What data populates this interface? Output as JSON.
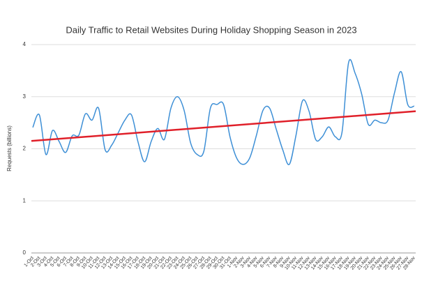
{
  "chart_data": {
    "type": "line",
    "title": "Daily Traffic to Retail Websites During Holiday Shopping Season in 2023",
    "y_label": "Requests (billions)",
    "categories": [
      "1-Oct",
      "2-Oct",
      "3-Oct",
      "4-Oct",
      "5-Oct",
      "6-Oct",
      "7-Oct",
      "8-Oct",
      "9-Oct",
      "10-Oct",
      "11-Oct",
      "12-Oct",
      "13-Oct",
      "14-Oct",
      "15-Oct",
      "16-Oct",
      "17-Oct",
      "18-Oct",
      "19-Oct",
      "20-Oct",
      "21-Oct",
      "22-Oct",
      "23-Oct",
      "24-Oct",
      "25-Oct",
      "26-Oct",
      "27-Oct",
      "28-Oct",
      "29-Oct",
      "30-Oct",
      "31-Oct",
      "1-Nov",
      "2-Nov",
      "3-Nov",
      "4-Nov",
      "5-Nov",
      "6-Nov",
      "7-Nov",
      "8-Nov",
      "9-Nov",
      "10-Nov",
      "11-Nov",
      "12-Nov",
      "13-Nov",
      "14-Nov",
      "15-Nov",
      "16-Nov",
      "17-Nov",
      "18-Nov",
      "19-Nov",
      "20-Nov",
      "21-Nov",
      "22-Nov",
      "23-Nov",
      "24-Nov",
      "25-Nov",
      "26-Nov",
      "27-Nov",
      "28-Nov"
    ],
    "series": [
      {
        "color": "#3d8fd6",
        "values": [
          2.41,
          2.65,
          1.89,
          2.35,
          2.14,
          1.93,
          2.25,
          2.26,
          2.67,
          2.55,
          2.78,
          1.98,
          2.07,
          2.31,
          2.55,
          2.65,
          2.13,
          1.75,
          2.14,
          2.39,
          2.18,
          2.78,
          3.0,
          2.74,
          2.11,
          1.89,
          1.95,
          2.78,
          2.85,
          2.85,
          2.22,
          1.82,
          1.7,
          1.83,
          2.26,
          2.74,
          2.78,
          2.38,
          1.98,
          1.7,
          2.25,
          2.92,
          2.72,
          2.18,
          2.23,
          2.42,
          2.23,
          2.31,
          3.65,
          3.45,
          3.05,
          2.47,
          2.55,
          2.5,
          2.55,
          3.08,
          3.48,
          2.85,
          2.82
        ]
      }
    ],
    "trendline": {
      "color": "#e0202a",
      "start": 2.15,
      "end": 2.72
    },
    "ylim": [
      0,
      4
    ],
    "yticks": [
      0,
      1,
      2,
      3,
      4
    ],
    "grid": true
  }
}
